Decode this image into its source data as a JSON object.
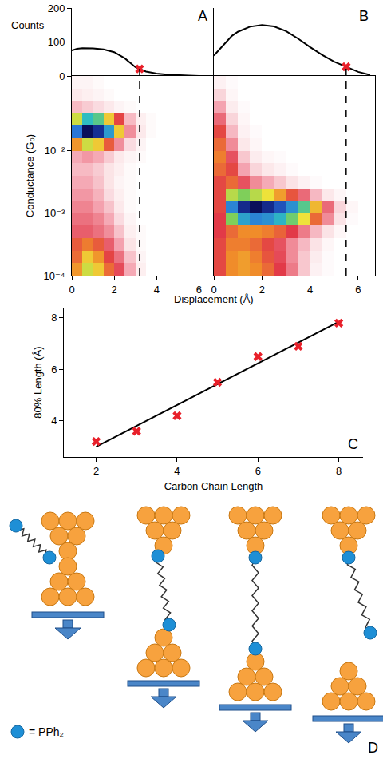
{
  "chart_data": [
    {
      "panel": "A",
      "type": "line",
      "ylabel": "Counts",
      "x": [
        0,
        0.25,
        0.5,
        0.75,
        1,
        1.5,
        2,
        2.5,
        3,
        3.5,
        4,
        4.5,
        5,
        5.5,
        6,
        6.5
      ],
      "values": [
        75,
        80,
        82,
        82,
        81,
        78,
        70,
        52,
        26,
        13,
        7,
        4,
        2,
        1,
        0,
        0
      ],
      "color": "#000000",
      "highlight": {
        "x": [
          3.2
        ],
        "values": [
          21
        ],
        "color": "#e8202a",
        "marker": "x"
      },
      "xlim": [
        0,
        6.7
      ],
      "ylim": [
        0,
        200
      ],
      "yticks": [
        0,
        100,
        200
      ],
      "tick_labels": "y"
    },
    {
      "type": "heatmap",
      "xlabel": "Displacement (Å)",
      "ylabel": "Conductance (G₀)",
      "log": "y",
      "x_bins": [
        0,
        0.5,
        1,
        1.5,
        2,
        2.5,
        3,
        3.5,
        4,
        4.5,
        5,
        5.5,
        6,
        6.5,
        7
      ],
      "y_bins": [
        0.0001,
        0.000158,
        0.000251,
        0.000398,
        0.000631,
        0.001,
        0.00158,
        0.00251,
        0.00398,
        0.00631,
        0.01,
        0.0158,
        0.0251,
        0.0398,
        0.0631,
        0.1,
        0.158
      ],
      "cells": [
        [
          35,
          45,
          40,
          30,
          22,
          12,
          3,
          0,
          0,
          0,
          0,
          0,
          0,
          0
        ],
        [
          30,
          40,
          35,
          25,
          18,
          9,
          2,
          0,
          0,
          0,
          0,
          0,
          0,
          0
        ],
        [
          28,
          32,
          28,
          20,
          13,
          5,
          1,
          0,
          0,
          0,
          0,
          0,
          0,
          0
        ],
        [
          20,
          20,
          18,
          15,
          9,
          3,
          1,
          0,
          0,
          0,
          0,
          0,
          0,
          0
        ],
        [
          18,
          18,
          16,
          12,
          6,
          2,
          0,
          0,
          0,
          0,
          0,
          0,
          0,
          0
        ],
        [
          16,
          16,
          13,
          9,
          4,
          1,
          0,
          0,
          0,
          0,
          0,
          0,
          0,
          0
        ],
        [
          14,
          14,
          11,
          6,
          3,
          1,
          0,
          0,
          0,
          0,
          0,
          0,
          0,
          0
        ],
        [
          12,
          12,
          9,
          5,
          2,
          1,
          0,
          0,
          0,
          0,
          0,
          0,
          0,
          0
        ],
        [
          10,
          10,
          8,
          5,
          3,
          1,
          0,
          0,
          0,
          0,
          0,
          0,
          0,
          0
        ],
        [
          12,
          14,
          12,
          8,
          4,
          2,
          1,
          0,
          0,
          0,
          0,
          0,
          0,
          0
        ],
        [
          35,
          45,
          40,
          28,
          15,
          6,
          2,
          0,
          0,
          0,
          0,
          0,
          0,
          0
        ],
        [
          70,
          85,
          80,
          65,
          40,
          15,
          4,
          1,
          0,
          0,
          0,
          0,
          0,
          0
        ],
        [
          45,
          60,
          55,
          40,
          25,
          10,
          3,
          1,
          0,
          0,
          0,
          0,
          0,
          0
        ],
        [
          10,
          8,
          6,
          4,
          2,
          1,
          0,
          0,
          0,
          0,
          0,
          0,
          0,
          0
        ],
        [
          4,
          3,
          2,
          1,
          0,
          0,
          0,
          0,
          0,
          0,
          0,
          0,
          0,
          0
        ],
        [
          2,
          2,
          1,
          0,
          0,
          0,
          0,
          0,
          0,
          0,
          0,
          0,
          0,
          0
        ]
      ],
      "window": [
        0.016,
        0.034
      ],
      "xlim": [
        0,
        6.7
      ],
      "xticks": [
        0,
        2,
        4,
        6
      ],
      "ylim": [
        0.0001,
        0.158
      ],
      "yticks": [
        {
          "value": 0.0001,
          "label": "10⁻⁴"
        },
        {
          "value": 0.001,
          "label": "10⁻³"
        },
        {
          "value": 0.01,
          "label": "10⁻²"
        }
      ]
    },
    {
      "panel": "B",
      "type": "line",
      "x": [
        0,
        0.25,
        0.5,
        0.75,
        1,
        1.5,
        2,
        2.5,
        3,
        3.5,
        4,
        4.5,
        5,
        5.5,
        6,
        6.5
      ],
      "values": [
        60,
        80,
        100,
        118,
        130,
        145,
        150,
        146,
        132,
        110,
        85,
        62,
        42,
        27,
        12,
        3
      ],
      "color": "#000000",
      "highlight": {
        "x": [
          5.5
        ],
        "values": [
          27
        ],
        "color": "#e8202a",
        "marker": "x"
      },
      "xlim": [
        0,
        6.7
      ],
      "ylim": [
        0,
        200
      ],
      "tick_labels": false
    },
    {
      "type": "heatmap",
      "log": "y",
      "x_bins": [
        0,
        0.5,
        1,
        1.5,
        2,
        2.5,
        3,
        3.5,
        4,
        4.5,
        5,
        5.5,
        6,
        6.5,
        7
      ],
      "y_bins": [
        0.0001,
        0.000158,
        0.000251,
        0.000398,
        0.000631,
        0.001,
        0.00158,
        0.00251,
        0.00398,
        0.00631,
        0.01,
        0.0158,
        0.0251,
        0.0398,
        0.0631,
        0.1,
        0.158
      ],
      "cells": [
        [
          30,
          40,
          42,
          40,
          35,
          28,
          20,
          10,
          3,
          1,
          0,
          0,
          0,
          0
        ],
        [
          30,
          40,
          42,
          38,
          32,
          26,
          18,
          10,
          4,
          1,
          0,
          0,
          0,
          0
        ],
        [
          30,
          38,
          38,
          35,
          30,
          25,
          18,
          12,
          6,
          2,
          0,
          0,
          0,
          0
        ],
        [
          28,
          35,
          40,
          40,
          38,
          34,
          28,
          20,
          12,
          6,
          2,
          0,
          0,
          0
        ],
        [
          28,
          60,
          75,
          80,
          78,
          72,
          62,
          50,
          35,
          18,
          6,
          1,
          0,
          0
        ],
        [
          30,
          80,
          95,
          100,
          95,
          88,
          78,
          65,
          45,
          22,
          8,
          2,
          0,
          0
        ],
        [
          30,
          55,
          60,
          55,
          50,
          42,
          32,
          22,
          12,
          5,
          2,
          0,
          0,
          0
        ],
        [
          30,
          35,
          25,
          18,
          14,
          10,
          6,
          3,
          1,
          0,
          0,
          0,
          0,
          0
        ],
        [
          35,
          30,
          15,
          8,
          5,
          3,
          1,
          0,
          0,
          0,
          0,
          0,
          0,
          0
        ],
        [
          38,
          25,
          10,
          4,
          2,
          1,
          0,
          0,
          0,
          0,
          0,
          0,
          0,
          0
        ],
        [
          35,
          18,
          5,
          2,
          0,
          0,
          0,
          0,
          0,
          0,
          0,
          0,
          0,
          0
        ],
        [
          30,
          12,
          3,
          1,
          0,
          0,
          0,
          0,
          0,
          0,
          0,
          0,
          0,
          0
        ],
        [
          22,
          8,
          2,
          0,
          0,
          0,
          0,
          0,
          0,
          0,
          0,
          0,
          0,
          0
        ],
        [
          15,
          4,
          1,
          0,
          0,
          0,
          0,
          0,
          0,
          0,
          0,
          0,
          0,
          0
        ],
        [
          8,
          2,
          0,
          0,
          0,
          0,
          0,
          0,
          0,
          0,
          0,
          0,
          0,
          0
        ],
        [
          3,
          1,
          0,
          0,
          0,
          0,
          0,
          0,
          0,
          0,
          0,
          0,
          0,
          0
        ]
      ],
      "window": [
        0.0008,
        0.0022
      ],
      "xlim": [
        0,
        6.7
      ],
      "xticks": [
        0,
        2,
        4,
        6
      ],
      "ylim": [
        0.0001,
        0.158
      ],
      "tick_labels": "x"
    },
    {
      "panel": "C",
      "type": "scatter",
      "xlabel": "Carbon Chain Length",
      "ylabel": "80% Length (Å)",
      "x": [
        2,
        3,
        4,
        5,
        6,
        7,
        8
      ],
      "values": [
        3.2,
        3.6,
        4.2,
        5.5,
        6.5,
        6.9,
        7.8
      ],
      "color": "#e8202a",
      "marker": "x",
      "fit": {
        "type": "line",
        "x": [
          2,
          8
        ],
        "values": [
          3.0,
          7.85
        ],
        "color": "#000000"
      },
      "xlim": [
        1.2,
        8.6
      ],
      "xticks": [
        2,
        4,
        6,
        8
      ],
      "ylim": [
        2.6,
        8.4
      ],
      "yticks": [
        4,
        6,
        8
      ]
    }
  ],
  "diagram": {
    "panel": "D",
    "key_label": "= PPh₂"
  }
}
